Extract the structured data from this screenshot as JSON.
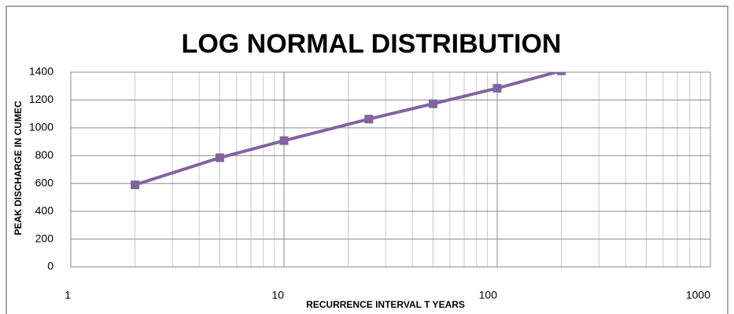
{
  "chart_data": {
    "type": "line",
    "title": "LOG NORMAL DISTRIBUTION",
    "x_label": "RECURRENCE INTERVAL T YEARS",
    "y_label": "PEAK DISCHARGE IN  CUMEC",
    "x": [
      2,
      5,
      10,
      25,
      50,
      100,
      200
    ],
    "series": [
      {
        "name": "PEAK DISCHARGE",
        "color": "#8064a2",
        "values": [
          590,
          785,
          908,
          1063,
          1173,
          1285,
          1410
        ]
      }
    ],
    "xscale": "log",
    "xlim": [
      1,
      1000
    ],
    "xticks": [
      1,
      10,
      100,
      1000
    ],
    "xminor": [
      2,
      3,
      4,
      5,
      6,
      7,
      8,
      9,
      20,
      30,
      40,
      50,
      60,
      70,
      80,
      90,
      200,
      300,
      400,
      500,
      600,
      700,
      800,
      900
    ],
    "ylim": [
      0,
      1400
    ],
    "yticks": [
      0,
      200,
      400,
      600,
      800,
      1000,
      1200,
      1400
    ],
    "grid": true
  }
}
